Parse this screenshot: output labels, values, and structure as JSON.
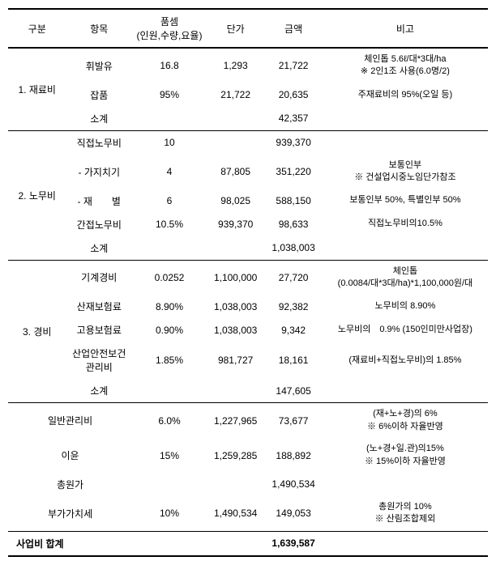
{
  "headers": {
    "gubun": "구분",
    "item": "항목",
    "rate": "품셈\n(인원,수량,요율)",
    "unit": "단가",
    "amount": "금액",
    "note": "비고"
  },
  "rows": [
    {
      "gubun": "1. 재료비",
      "gubun_rowspan": 3,
      "item": "휘발유",
      "rate": "16.8",
      "unit": "1,293",
      "amount": "21,722",
      "note": "체인톱 5.6ℓ/대*3대/ha\n※ 2인1조 사용(6.0명/2)",
      "top": "thick"
    },
    {
      "item": "잡품",
      "rate": "95%",
      "unit": "21,722",
      "amount": "20,635",
      "note": "주재료비의 95%(오일 등)"
    },
    {
      "item": "소계",
      "rate": "",
      "unit": "",
      "amount": "42,357",
      "note": "",
      "bottom": "thin"
    },
    {
      "gubun": "2. 노무비",
      "gubun_rowspan": 5,
      "item": "직접노무비",
      "rate": "10",
      "unit": "",
      "amount": "939,370",
      "note": ""
    },
    {
      "item": "- 가지치기",
      "rate": "4",
      "unit": "87,805",
      "amount": "351,220",
      "note": "보통인부\n※ 건설업시중노임단가참조"
    },
    {
      "item": "- 재　　별",
      "rate": "6",
      "unit": "98,025",
      "amount": "588,150",
      "note": "보통인부 50%, 특별인부 50%"
    },
    {
      "item": "간접노무비",
      "rate": "10.5%",
      "unit": "939,370",
      "amount": "98,633",
      "note": "직접노무비의10.5%"
    },
    {
      "item": "소계",
      "rate": "",
      "unit": "",
      "amount": "1,038,003",
      "note": "",
      "bottom": "thin"
    },
    {
      "gubun": "3. 경비",
      "gubun_rowspan": 5,
      "item": "기계경비",
      "rate": "0.0252",
      "unit": "1,100,000",
      "amount": "27,720",
      "note": "체인톱\n(0.0084/대*3대/ha)*1,100,000원/대"
    },
    {
      "item": "산재보험료",
      "rate": "8.90%",
      "unit": "1,038,003",
      "amount": "92,382",
      "note": "노무비의 8.90%"
    },
    {
      "item": "고용보험료",
      "rate": "0.90%",
      "unit": "1,038,003",
      "amount": "9,342",
      "note": "노무비의　0.9% (150인미만사업장)"
    },
    {
      "item": "산업안전보건\n관리비",
      "rate": "1.85%",
      "unit": "981,727",
      "amount": "18,161",
      "note": "(재료비+직접노무비)의 1.85%"
    },
    {
      "item": "소계",
      "rate": "",
      "unit": "",
      "amount": "147,605",
      "note": "",
      "bottom": "thin"
    },
    {
      "item_span": "일반관리비",
      "rate": "6.0%",
      "unit": "1,227,965",
      "amount": "73,677",
      "note": "(재+노+경)의 6%\n※ 6%이하 자율반영"
    },
    {
      "item_span": "이윤",
      "rate": "15%",
      "unit": "1,259,285",
      "amount": "188,892",
      "note": "(노+경+일.관)의15%\n※ 15%이하 자율반영"
    },
    {
      "item_span": "총원가",
      "rate": "",
      "unit": "",
      "amount": "1,490,534",
      "note": ""
    },
    {
      "item_span": "부가가치세",
      "rate": "10%",
      "unit": "1,490,534",
      "amount": "149,053",
      "note": "총원가의 10%\n※ 산림조합제외",
      "bottom": "thin"
    },
    {
      "total": "사업비 합계",
      "rate": "",
      "unit": "",
      "amount": "1,639,587",
      "note": "",
      "bold": true,
      "bottom": "thick"
    }
  ]
}
